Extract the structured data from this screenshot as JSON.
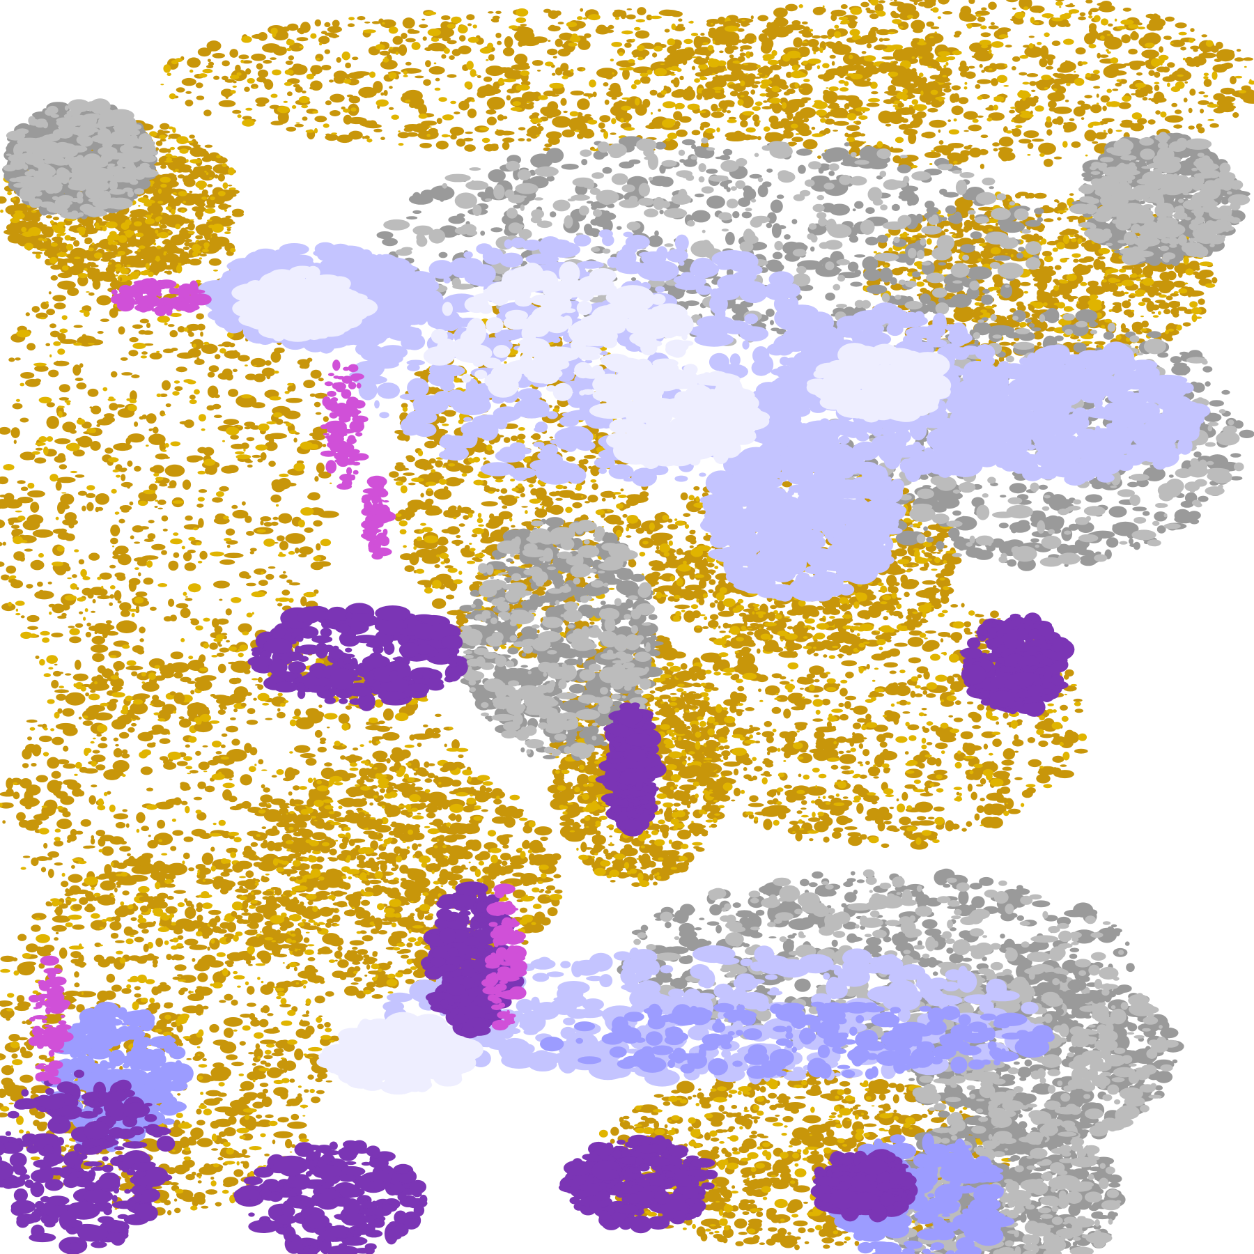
{
  "map": {
    "kind": "cloud-classification raster",
    "palette": {
      "background": "#ffffff",
      "gold": "#c8960a",
      "bright_gold": "#e0b400",
      "grey": "#9a9a9a",
      "light_grey": "#bcbcbc",
      "lavender": "#c4c4ff",
      "pale": "#eeeeff",
      "periwinkle": "#9c9cff",
      "purple": "#7b35b5",
      "magenta": "#d050d8"
    }
  }
}
